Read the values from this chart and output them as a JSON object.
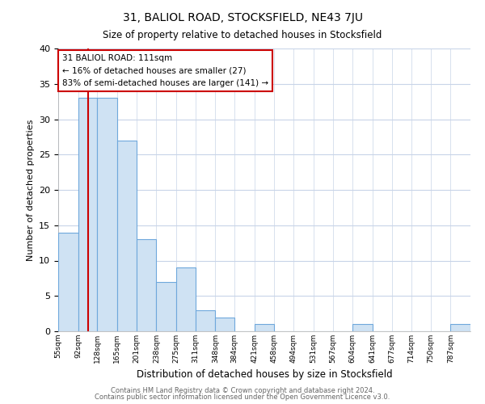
{
  "title1": "31, BALIOL ROAD, STOCKSFIELD, NE43 7JU",
  "title2": "Size of property relative to detached houses in Stocksfield",
  "bar_edges": [
    55,
    92,
    128,
    165,
    201,
    238,
    275,
    311,
    348,
    384,
    421,
    458,
    494,
    531,
    567,
    604,
    641,
    677,
    714,
    750,
    787,
    824
  ],
  "bar_heights": [
    14,
    33,
    33,
    27,
    13,
    7,
    9,
    3,
    2,
    0,
    1,
    0,
    0,
    0,
    0,
    1,
    0,
    0,
    0,
    0,
    1
  ],
  "tick_labels": [
    "55sqm",
    "92sqm",
    "128sqm",
    "165sqm",
    "201sqm",
    "238sqm",
    "275sqm",
    "311sqm",
    "348sqm",
    "384sqm",
    "421sqm",
    "458sqm",
    "494sqm",
    "531sqm",
    "567sqm",
    "604sqm",
    "641sqm",
    "677sqm",
    "714sqm",
    "750sqm",
    "787sqm"
  ],
  "bar_color": "#cfe2f3",
  "bar_edge_color": "#6fa8dc",
  "ylabel": "Number of detached properties",
  "xlabel": "Distribution of detached houses by size in Stocksfield",
  "ylim": [
    0,
    40
  ],
  "yticks": [
    0,
    5,
    10,
    15,
    20,
    25,
    30,
    35,
    40
  ],
  "red_line_x": 111,
  "annotation_title": "31 BALIOL ROAD: 111sqm",
  "annotation_line1": "← 16% of detached houses are smaller (27)",
  "annotation_line2": "83% of semi-detached houses are larger (141) →",
  "annotation_box_color": "#ffffff",
  "annotation_box_edge": "#cc0000",
  "red_line_color": "#cc0000",
  "footer1": "Contains HM Land Registry data © Crown copyright and database right 2024.",
  "footer2": "Contains public sector information licensed under the Open Government Licence v3.0.",
  "background_color": "#ffffff",
  "grid_color": "#c8d4e8"
}
